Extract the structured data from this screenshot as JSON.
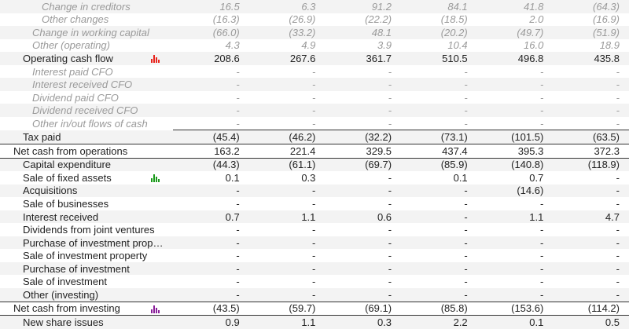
{
  "rows": [
    {
      "label": "Change in creditors",
      "values": [
        "16.5",
        "6.3",
        "91.2",
        "84.1",
        "41.8",
        "(64.3)"
      ]
    },
    {
      "label": "Other changes",
      "values": [
        "(16.3)",
        "(26.9)",
        "(22.2)",
        "(18.5)",
        "2.0",
        "(16.9)"
      ]
    },
    {
      "label": "Change in working capital",
      "values": [
        "(66.0)",
        "(33.2)",
        "48.1",
        "(20.2)",
        "(49.7)",
        "(51.9)"
      ]
    },
    {
      "label": "Other (operating)",
      "values": [
        "4.3",
        "4.9",
        "3.9",
        "10.4",
        "16.0",
        "18.9"
      ]
    },
    {
      "label": "Operating cash flow",
      "values": [
        "208.6",
        "267.6",
        "361.7",
        "510.5",
        "496.8",
        "435.8"
      ],
      "icon": "bar-chart-icon",
      "icon_color": "#e8241d"
    },
    {
      "label": "Interest paid CFO",
      "values": [
        "-",
        "-",
        "-",
        "-",
        "-",
        "-"
      ]
    },
    {
      "label": "Interest received CFO",
      "values": [
        "-",
        "-",
        "-",
        "-",
        "-",
        "-"
      ]
    },
    {
      "label": "Dividend paid CFO",
      "values": [
        "-",
        "-",
        "-",
        "-",
        "-",
        "-"
      ]
    },
    {
      "label": "Dividend received CFO",
      "values": [
        "-",
        "-",
        "-",
        "-",
        "-",
        "-"
      ]
    },
    {
      "label": "Other in/out flows of cash",
      "values": [
        "-",
        "-",
        "-",
        "-",
        "-",
        "-"
      ]
    },
    {
      "label": "Tax paid",
      "values": [
        "(45.4)",
        "(46.2)",
        "(32.2)",
        "(73.1)",
        "(101.5)",
        "(63.5)"
      ]
    },
    {
      "label": "Net cash from operations",
      "values": [
        "163.2",
        "221.4",
        "329.5",
        "437.4",
        "395.3",
        "372.3"
      ]
    },
    {
      "label": "Capital expenditure",
      "values": [
        "(44.3)",
        "(61.1)",
        "(69.7)",
        "(85.9)",
        "(140.8)",
        "(118.9)"
      ]
    },
    {
      "label": "Sale of fixed assets",
      "values": [
        "0.1",
        "0.3",
        "-",
        "0.1",
        "0.7",
        "-"
      ],
      "icon": "bar-chart-icon",
      "icon_color": "#1a9a1a"
    },
    {
      "label": "Acquisitions",
      "values": [
        "-",
        "-",
        "-",
        "-",
        "(14.6)",
        "-"
      ]
    },
    {
      "label": "Sale of businesses",
      "values": [
        "-",
        "-",
        "-",
        "-",
        "-",
        "-"
      ]
    },
    {
      "label": "Interest received",
      "values": [
        "0.7",
        "1.1",
        "0.6",
        "-",
        "1.1",
        "4.7"
      ]
    },
    {
      "label": "Dividends from joint ventures",
      "values": [
        "-",
        "-",
        "-",
        "-",
        "-",
        "-"
      ]
    },
    {
      "label": "Purchase of investment prop…",
      "values": [
        "-",
        "-",
        "-",
        "-",
        "-",
        "-"
      ]
    },
    {
      "label": "Sale of investment property",
      "values": [
        "-",
        "-",
        "-",
        "-",
        "-",
        "-"
      ]
    },
    {
      "label": "Purchase of investment",
      "values": [
        "-",
        "-",
        "-",
        "-",
        "-",
        "-"
      ]
    },
    {
      "label": "Sale of investment",
      "values": [
        "-",
        "-",
        "-",
        "-",
        "-",
        "-"
      ]
    },
    {
      "label": "Other (investing)",
      "values": [
        "-",
        "-",
        "-",
        "-",
        "-",
        "-"
      ]
    },
    {
      "label": "Net cash from investing",
      "values": [
        "(43.5)",
        "(59.7)",
        "(69.1)",
        "(85.8)",
        "(153.6)",
        "(114.2)"
      ],
      "icon": "bar-chart-icon",
      "icon_color": "#8a1f9a"
    },
    {
      "label": "New share issues",
      "values": [
        "0.9",
        "1.1",
        "0.3",
        "2.2",
        "0.1",
        "0.5"
      ]
    }
  ]
}
